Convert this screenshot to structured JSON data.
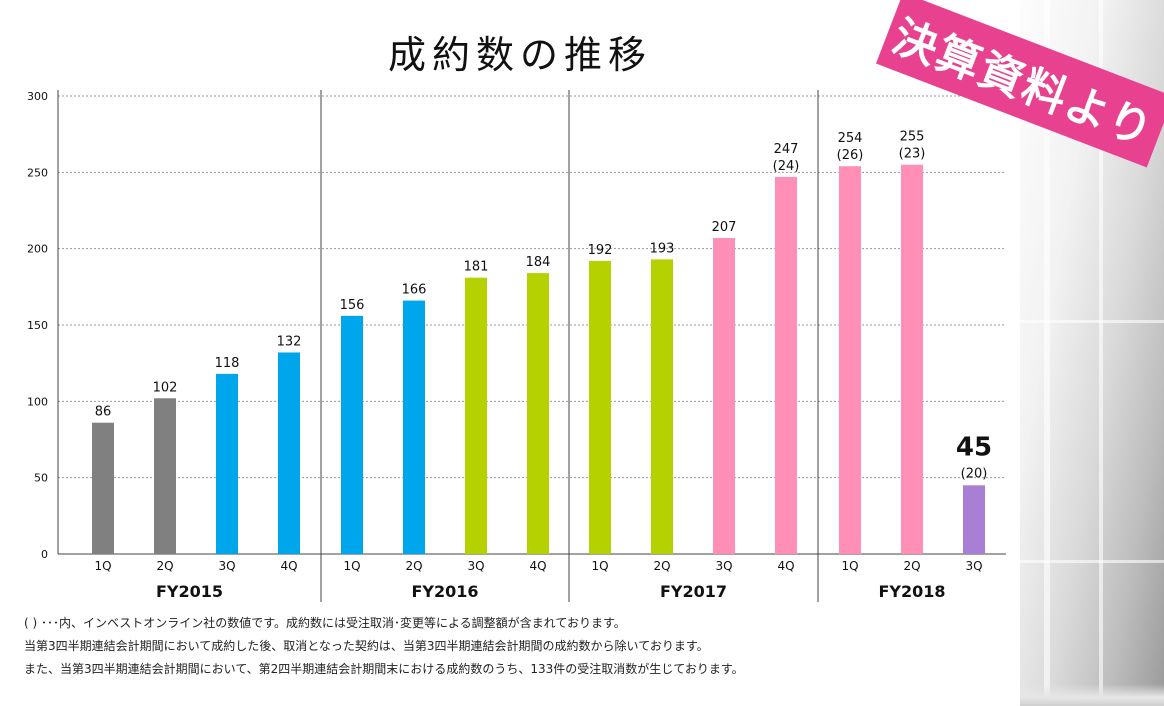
{
  "title": "成約数の推移",
  "badge": "決算資料より",
  "chart_data": {
    "type": "bar",
    "ylim": [
      0,
      300
    ],
    "yticks": [
      0,
      50,
      100,
      150,
      200,
      250,
      300
    ],
    "grid": true,
    "groups": [
      {
        "name": "FY2015",
        "bars": [
          {
            "label": "1Q",
            "value": 86,
            "color": "#808080"
          },
          {
            "label": "2Q",
            "value": 102,
            "color": "#808080"
          },
          {
            "label": "3Q",
            "value": 118,
            "color": "#00a6ec"
          },
          {
            "label": "4Q",
            "value": 132,
            "color": "#00a6ec"
          }
        ]
      },
      {
        "name": "FY2016",
        "bars": [
          {
            "label": "1Q",
            "value": 156,
            "color": "#00a6ec"
          },
          {
            "label": "2Q",
            "value": 166,
            "color": "#00a6ec"
          },
          {
            "label": "3Q",
            "value": 181,
            "color": "#b5d100"
          },
          {
            "label": "4Q",
            "value": 184,
            "color": "#b5d100"
          }
        ]
      },
      {
        "name": "FY2017",
        "bars": [
          {
            "label": "1Q",
            "value": 192,
            "color": "#b5d100"
          },
          {
            "label": "2Q",
            "value": 193,
            "color": "#b5d100"
          },
          {
            "label": "3Q",
            "value": 207,
            "color": "#ff8fb6"
          },
          {
            "label": "4Q",
            "value": 247,
            "sub": "(24)",
            "color": "#ff8fb6"
          }
        ]
      },
      {
        "name": "FY2018",
        "bars": [
          {
            "label": "1Q",
            "value": 254,
            "sub": "(26)",
            "color": "#ff8fb6"
          },
          {
            "label": "2Q",
            "value": 255,
            "sub": "(23)",
            "color": "#ff8fb6"
          },
          {
            "label": "3Q",
            "value": 45,
            "sub": "(20)",
            "color": "#a97fd6",
            "emphasis": true
          }
        ]
      }
    ]
  },
  "notes": [
    "( ) ･･･内、インベストオンライン社の数値です。成約数には受注取消･変更等による調整額が含まれております。",
    "当第3四半期連結会計期間において成約した後、取消となった契約は、当第3四半期連結会計期間の成約数から除いております。",
    "また、当第3四半期連結会計期間において、第2四半期連結会計期間末における成約数のうち、133件の受注取消数が生じております。"
  ]
}
